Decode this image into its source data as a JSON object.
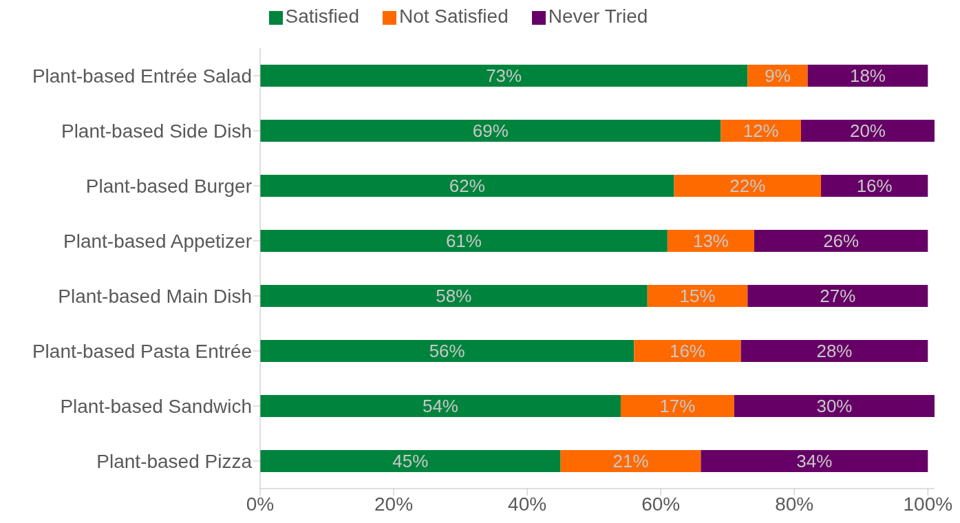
{
  "chart_data": {
    "type": "bar",
    "orientation": "horizontal",
    "stacked": true,
    "categories": [
      "Plant-based Entrée Salad",
      "Plant-based Side Dish",
      "Plant-based Burger",
      "Plant-based Appetizer",
      "Plant-based Main Dish",
      "Plant-based Pasta Entrée",
      "Plant-based Sandwich",
      "Plant-based Pizza"
    ],
    "series": [
      {
        "name": "Satisfied",
        "color": "#00843d",
        "values": [
          73,
          69,
          62,
          61,
          58,
          56,
          54,
          45
        ],
        "value_labels": [
          "73%",
          "69%",
          "62%",
          "61%",
          "58%",
          "56%",
          "54%",
          "45%"
        ]
      },
      {
        "name": "Not Satisfied",
        "color": "#ff6a00",
        "values": [
          9,
          12,
          22,
          13,
          15,
          16,
          17,
          21
        ],
        "value_labels": [
          "9%",
          "12%",
          "22%",
          "13%",
          "15%",
          "16%",
          "17%",
          "21%"
        ]
      },
      {
        "name": "Never Tried",
        "color": "#660066",
        "values": [
          18,
          20,
          16,
          26,
          27,
          28,
          30,
          34
        ],
        "value_labels": [
          "18%",
          "20%",
          "16%",
          "26%",
          "27%",
          "28%",
          "30%",
          "34%"
        ]
      }
    ],
    "xlim": [
      0,
      101
    ],
    "xticks": [
      {
        "value": 0,
        "label": "0%"
      },
      {
        "value": 20,
        "label": "20%"
      },
      {
        "value": 40,
        "label": "40%"
      },
      {
        "value": 60,
        "label": "60%"
      },
      {
        "value": 80,
        "label": "80%"
      },
      {
        "value": 100,
        "label": "100%"
      }
    ],
    "grid": false,
    "legend": "top"
  }
}
